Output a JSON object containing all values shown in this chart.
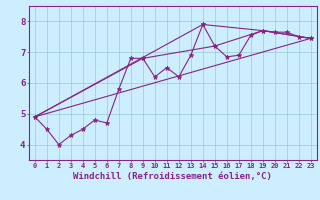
{
  "background_color": "#cceeff",
  "grid_color": "#99cccc",
  "line_color": "#882288",
  "marker_color": "#882288",
  "xlabel": "Windchill (Refroidissement éolien,°C)",
  "xlim": [
    -0.5,
    23.5
  ],
  "ylim": [
    3.5,
    8.5
  ],
  "yticks": [
    4,
    5,
    6,
    7,
    8
  ],
  "xticks": [
    0,
    1,
    2,
    3,
    4,
    5,
    6,
    7,
    8,
    9,
    10,
    11,
    12,
    13,
    14,
    15,
    16,
    17,
    18,
    19,
    20,
    21,
    22,
    23
  ],
  "series": [
    {
      "x": [
        0,
        1,
        2,
        3,
        4,
        5,
        6,
        7,
        8,
        9,
        10,
        11,
        12,
        13,
        14,
        15,
        16,
        17,
        18,
        19,
        20,
        21,
        22,
        23
      ],
      "y": [
        4.9,
        4.5,
        4.0,
        4.3,
        4.5,
        4.8,
        4.7,
        5.8,
        6.8,
        6.8,
        6.2,
        6.5,
        6.2,
        6.9,
        7.9,
        7.2,
        6.85,
        6.9,
        7.55,
        7.7,
        7.65,
        7.65,
        7.5,
        7.45
      ],
      "with_markers": true
    },
    {
      "x": [
        0,
        23
      ],
      "y": [
        4.9,
        7.45
      ],
      "with_markers": false
    },
    {
      "x": [
        0,
        14,
        19,
        23
      ],
      "y": [
        4.9,
        7.9,
        7.7,
        7.45
      ],
      "with_markers": true
    },
    {
      "x": [
        0,
        9,
        15,
        19,
        23
      ],
      "y": [
        4.9,
        6.8,
        7.2,
        7.7,
        7.45
      ],
      "with_markers": true
    }
  ],
  "marker": "*",
  "markersize_main": 3.5,
  "markersize_sub": 3.0,
  "linewidth": 0.8,
  "xlabel_fontsize": 6.5,
  "tick_fontsize_x": 5.0,
  "tick_fontsize_y": 6.5,
  "xlabel_color": "#882288",
  "tick_color": "#882288",
  "axis_color": "#882288"
}
